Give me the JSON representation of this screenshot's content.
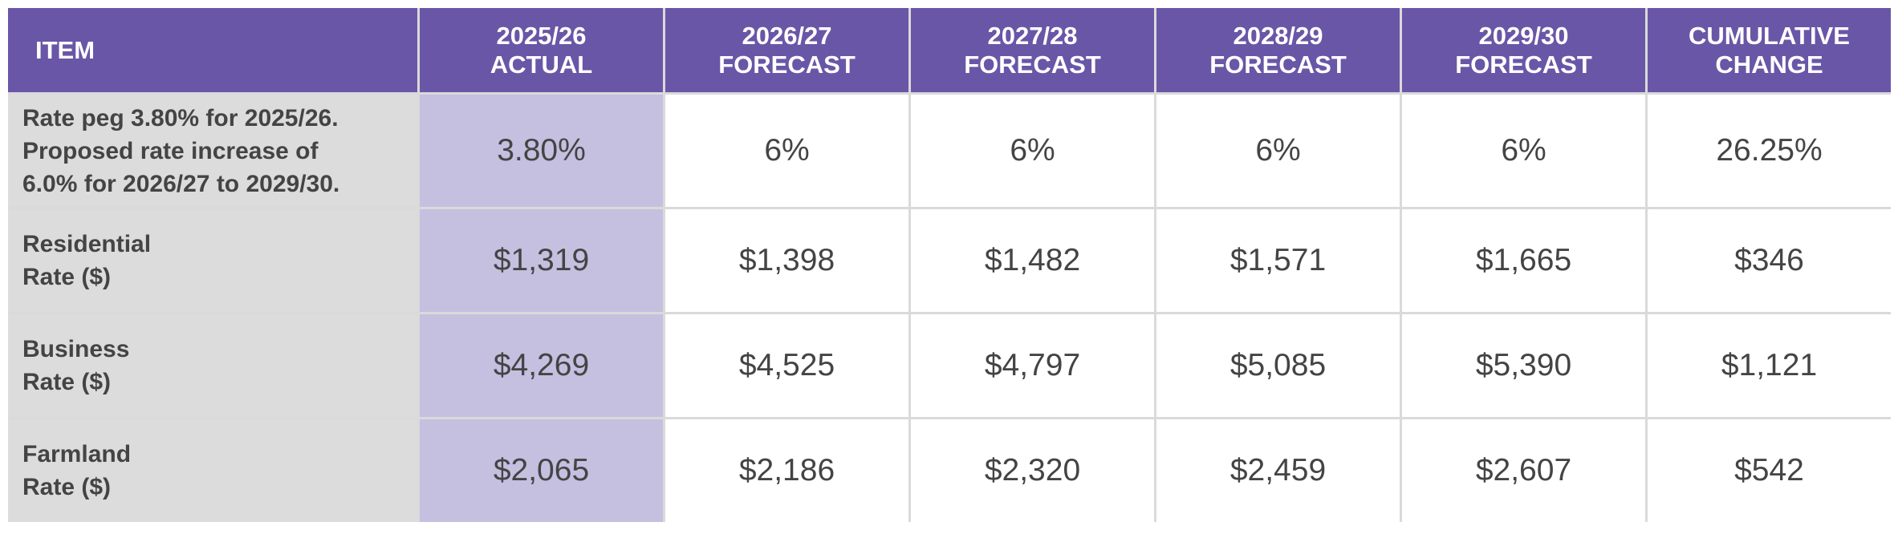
{
  "table": {
    "header": [
      "ITEM",
      "2025/26\nACTUAL",
      "2026/27\nFORECAST",
      "2027/28\nFORECAST",
      "2028/29\nFORECAST",
      "2029/30\nFORECAST",
      "CUMULATIVE\nCHANGE"
    ],
    "rows": [
      [
        "Rate peg 3.80% for 2025/26.\nProposed rate increase of\n6.0% for 2026/27 to 2029/30.",
        "3.80%",
        "6%",
        "6%",
        "6%",
        "6%",
        "26.25%"
      ],
      [
        "Residential\nRate ($)",
        "$1,319",
        "$1,398",
        "$1,482",
        "$1,571",
        "$1,665",
        "$346"
      ],
      [
        "Business\nRate ($)",
        "$4,269",
        "$4,525",
        "$4,797",
        "$5,085",
        "$5,390",
        "$1,121"
      ],
      [
        "Farmland\nRate ($)",
        "$2,065",
        "$2,186",
        "$2,320",
        "$2,459",
        "$2,607",
        "$542"
      ]
    ]
  }
}
